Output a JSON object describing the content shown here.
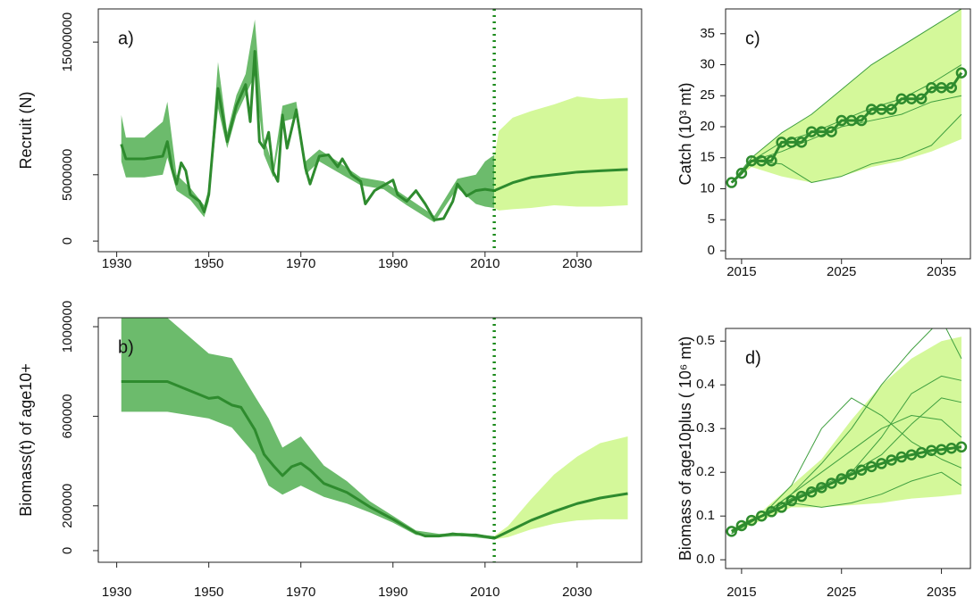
{
  "chart_data": [
    {
      "type": "line",
      "title": "a)",
      "ylabel": "Recruit (N)",
      "xlim": [
        1926,
        2044
      ],
      "ylim": [
        -800000,
        17500000
      ],
      "xticks": [
        1930,
        1950,
        1970,
        1990,
        2010,
        2030
      ],
      "yticks": [
        0,
        5000000,
        15000000
      ],
      "ytick_labels_vertical": true,
      "vline": 2012,
      "bands": [
        {
          "color": "#6cbb6c",
          "x": [
            1931,
            1932,
            1936,
            1940,
            1941,
            1943,
            1946,
            1949,
            1950,
            1952,
            1954,
            1956,
            1958,
            1960,
            1962,
            1964,
            1966,
            1969,
            1971,
            1974,
            1978,
            1983,
            1988,
            1993,
            1999,
            2004,
            2008,
            2010,
            2012
          ],
          "lower": [
            6000000,
            4800000,
            4800000,
            5000000,
            6300000,
            3800000,
            3100000,
            1800000,
            3000000,
            10000000,
            7000000,
            9500000,
            11000000,
            12500000,
            6500000,
            4800000,
            9000000,
            9300000,
            5000000,
            6000000,
            5200000,
            4200000,
            3900000,
            2700000,
            1400000,
            4000000,
            2800000,
            2600000,
            2500000
          ],
          "upper": [
            9500000,
            7800000,
            7800000,
            9000000,
            10500000,
            5000000,
            4000000,
            2700000,
            4000000,
            13500000,
            8200000,
            11000000,
            12600000,
            16700000,
            7800000,
            5600000,
            10200000,
            10500000,
            6000000,
            6900000,
            6000000,
            4800000,
            4500000,
            3300000,
            1900000,
            4700000,
            5000000,
            6000000,
            6500000
          ]
        },
        {
          "color": "#d4f89a",
          "x": [
            2012,
            2013,
            2016,
            2020,
            2025,
            2030,
            2035,
            2041
          ],
          "lower": [
            2500000,
            2300000,
            2400000,
            2500000,
            2700000,
            2600000,
            2600000,
            2700000
          ],
          "upper": [
            6300000,
            8300000,
            9300000,
            9800000,
            10300000,
            10900000,
            10700000,
            10800000
          ]
        }
      ],
      "series": [
        {
          "color": "#2e8b2e",
          "width": 3,
          "x": [
            1931,
            1932,
            1936,
            1940,
            1941,
            1942,
            1943,
            1944,
            1945,
            1946,
            1948,
            1949,
            1950,
            1952,
            1954,
            1956,
            1958,
            1959,
            1960,
            1961,
            1962,
            1963,
            1964,
            1965,
            1966,
            1967,
            1969,
            1971,
            1972,
            1974,
            1976,
            1978,
            1979,
            1981,
            1983,
            1984,
            1986,
            1988,
            1990,
            1991,
            1993,
            1995,
            1997,
            1999,
            2001,
            2003,
            2004,
            2006,
            2008,
            2010,
            2012,
            2016,
            2020,
            2025,
            2030,
            2035,
            2041
          ],
          "values": [
            7300000,
            6200000,
            6200000,
            6400000,
            7500000,
            5500000,
            4300000,
            5900000,
            5300000,
            3500000,
            3000000,
            2200000,
            3500000,
            11500000,
            7500000,
            10200000,
            11800000,
            9000000,
            14300000,
            7500000,
            7000000,
            8200000,
            5200000,
            4500000,
            9500000,
            7000000,
            9900000,
            5500000,
            4300000,
            6400000,
            6500000,
            5600000,
            6200000,
            5000000,
            4500000,
            2800000,
            3800000,
            4200000,
            4600000,
            3500000,
            3000000,
            3800000,
            2800000,
            1600000,
            1700000,
            3000000,
            4300000,
            3400000,
            3800000,
            3900000,
            3800000,
            4400000,
            4800000,
            5000000,
            5200000,
            5300000,
            5400000
          ]
        }
      ]
    },
    {
      "type": "line",
      "title": "b)",
      "ylabel": "Biomass(t) of age10+",
      "xlim": [
        1926,
        2044
      ],
      "ylim": [
        -52000,
        1040000
      ],
      "xticks": [
        1930,
        1950,
        1970,
        1990,
        2010,
        2030
      ],
      "yticks": [
        0,
        200000,
        600000,
        1000000
      ],
      "ytick_labels_vertical": true,
      "vline": 2012,
      "bands": [
        {
          "color": "#6cbb6c",
          "x": [
            1931,
            1941,
            1950,
            1955,
            1960,
            1963,
            1966,
            1970,
            1975,
            1980,
            1985,
            1990,
            1995,
            2000,
            2005,
            2012
          ],
          "lower": [
            620000,
            620000,
            590000,
            550000,
            430000,
            290000,
            250000,
            290000,
            240000,
            210000,
            170000,
            125000,
            70000,
            60000,
            65000,
            50000
          ],
          "upper": [
            1040000,
            1040000,
            880000,
            860000,
            690000,
            590000,
            460000,
            510000,
            380000,
            310000,
            220000,
            155000,
            90000,
            75000,
            80000,
            65000
          ]
        },
        {
          "color": "#d4f89a",
          "x": [
            2012,
            2015,
            2020,
            2025,
            2030,
            2035,
            2041
          ],
          "lower": [
            50000,
            60000,
            95000,
            120000,
            135000,
            140000,
            140000
          ],
          "upper": [
            65000,
            110000,
            230000,
            340000,
            420000,
            480000,
            510000
          ]
        }
      ],
      "series": [
        {
          "color": "#2e8b2e",
          "width": 3,
          "x": [
            1931,
            1941,
            1950,
            1952,
            1955,
            1957,
            1960,
            1962,
            1964,
            1966,
            1968,
            1970,
            1972,
            1975,
            1980,
            1985,
            1990,
            1995,
            1997,
            2000,
            2003,
            2005,
            2008,
            2012,
            2015,
            2020,
            2025,
            2030,
            2035,
            2041
          ],
          "values": [
            755000,
            755000,
            680000,
            685000,
            650000,
            640000,
            540000,
            430000,
            380000,
            335000,
            375000,
            390000,
            360000,
            300000,
            260000,
            195000,
            140000,
            80000,
            65000,
            65000,
            75000,
            70000,
            70000,
            55000,
            85000,
            135000,
            175000,
            210000,
            235000,
            255000
          ]
        }
      ]
    },
    {
      "type": "line",
      "title": "c)",
      "ylabel": "Catch (10³ mt)",
      "xlim": [
        2013.4,
        2037.9
      ],
      "ylim": [
        -1.3,
        39
      ],
      "xticks": [
        2015,
        2025,
        2035
      ],
      "yticks": [
        0,
        5,
        10,
        15,
        20,
        25,
        30,
        35
      ],
      "ytick_labels_vertical": false,
      "bands": [
        {
          "color": "#d4f89a",
          "x": [
            2014,
            2016,
            2019,
            2022,
            2025,
            2028,
            2031,
            2034,
            2037
          ],
          "lower": [
            11,
            13.5,
            12,
            11,
            12,
            13.5,
            14.5,
            16,
            18
          ],
          "upper": [
            11,
            15,
            19,
            22,
            26,
            30,
            33,
            36,
            39
          ]
        }
      ],
      "series": [
        {
          "color": "#3f9f3f",
          "width": 1,
          "x": [
            2014,
            2016,
            2019,
            2022,
            2025,
            2028,
            2031,
            2034,
            2037
          ],
          "values": [
            11,
            14.5,
            14,
            11,
            12,
            14,
            15,
            17,
            22
          ]
        },
        {
          "color": "#3f9f3f",
          "width": 1,
          "x": [
            2014,
            2016,
            2019,
            2022,
            2025,
            2028,
            2031,
            2034,
            2037
          ],
          "values": [
            11,
            15,
            19,
            22,
            26,
            30,
            33,
            36,
            39
          ]
        },
        {
          "color": "#3f9f3f",
          "width": 1,
          "x": [
            2014,
            2016,
            2019,
            2022,
            2025,
            2028,
            2031,
            2034,
            2037
          ],
          "values": [
            11,
            14.5,
            17.5,
            19,
            21,
            23,
            24.5,
            27,
            30
          ]
        },
        {
          "color": "#3f9f3f",
          "width": 1,
          "x": [
            2014,
            2016,
            2019,
            2022,
            2025,
            2028,
            2031,
            2034,
            2037
          ],
          "values": [
            11,
            14.5,
            16,
            18,
            20,
            21,
            22,
            24,
            25
          ]
        },
        {
          "color": "#2e8b2e",
          "width": 3,
          "markers": true,
          "x": [
            2014,
            2015,
            2016,
            2017,
            2018,
            2019,
            2020,
            2021,
            2022,
            2023,
            2024,
            2025,
            2026,
            2027,
            2028,
            2029,
            2030,
            2031,
            2032,
            2033,
            2034,
            2035,
            2036,
            2037
          ],
          "values": [
            11,
            12.5,
            14.5,
            14.5,
            14.5,
            17.5,
            17.5,
            17.5,
            19.2,
            19.2,
            19.2,
            21,
            21,
            21,
            22.8,
            22.8,
            22.8,
            24.5,
            24.5,
            24.5,
            26.3,
            26.3,
            26.3,
            28.7
          ]
        }
      ]
    },
    {
      "type": "line",
      "title": "d)",
      "ylabel": "Biomass of age10plus ( 10⁶ mt)",
      "xlim": [
        2013.4,
        2037.9
      ],
      "ylim": [
        -0.02,
        0.529
      ],
      "xticks": [
        2015,
        2025,
        2035
      ],
      "yticks": [
        {
          "value": 0,
          "label": "0.0"
        },
        0.1,
        0.2,
        0.3,
        0.4,
        0.5
      ],
      "ytick_labels_vertical": false,
      "bands": [
        {
          "color": "#d4f89a",
          "x": [
            2014,
            2017,
            2020,
            2023,
            2026,
            2029,
            2032,
            2035,
            2037
          ],
          "lower": [
            0.06,
            0.09,
            0.12,
            0.12,
            0.125,
            0.13,
            0.14,
            0.145,
            0.15
          ],
          "upper": [
            0.07,
            0.11,
            0.17,
            0.23,
            0.32,
            0.4,
            0.46,
            0.5,
            0.51
          ]
        }
      ],
      "series": [
        {
          "color": "#3f9f3f",
          "width": 1,
          "x": [
            2014,
            2017,
            2020,
            2023,
            2026,
            2029,
            2032,
            2035,
            2037
          ],
          "values": [
            0.06,
            0.1,
            0.17,
            0.3,
            0.37,
            0.33,
            0.27,
            0.23,
            0.21
          ]
        },
        {
          "color": "#3f9f3f",
          "width": 1,
          "x": [
            2014,
            2017,
            2020,
            2023,
            2026,
            2029,
            2032,
            2035,
            2037
          ],
          "values": [
            0.06,
            0.1,
            0.15,
            0.22,
            0.3,
            0.4,
            0.48,
            0.55,
            0.46
          ]
        },
        {
          "color": "#3f9f3f",
          "width": 1,
          "x": [
            2014,
            2017,
            2020,
            2023,
            2026,
            2029,
            2032,
            2035,
            2037
          ],
          "values": [
            0.06,
            0.1,
            0.14,
            0.16,
            0.2,
            0.28,
            0.38,
            0.42,
            0.41
          ]
        },
        {
          "color": "#3f9f3f",
          "width": 1,
          "x": [
            2014,
            2017,
            2020,
            2023,
            2026,
            2029,
            2032,
            2035,
            2037
          ],
          "values": [
            0.06,
            0.1,
            0.13,
            0.12,
            0.13,
            0.15,
            0.18,
            0.2,
            0.17
          ]
        },
        {
          "color": "#3f9f3f",
          "width": 1,
          "x": [
            2014,
            2017,
            2020,
            2023,
            2026,
            2029,
            2032,
            2035,
            2037
          ],
          "values": [
            0.06,
            0.1,
            0.15,
            0.2,
            0.25,
            0.3,
            0.33,
            0.32,
            0.28
          ]
        },
        {
          "color": "#3f9f3f",
          "width": 1,
          "x": [
            2014,
            2017,
            2020,
            2023,
            2026,
            2029,
            2032,
            2035,
            2037
          ],
          "values": [
            0.06,
            0.1,
            0.14,
            0.17,
            0.2,
            0.24,
            0.31,
            0.37,
            0.36
          ]
        },
        {
          "color": "#2e8b2e",
          "width": 3,
          "markers": true,
          "x": [
            2014,
            2015,
            2016,
            2017,
            2018,
            2019,
            2020,
            2021,
            2022,
            2023,
            2024,
            2025,
            2026,
            2027,
            2028,
            2029,
            2030,
            2031,
            2032,
            2033,
            2034,
            2035,
            2036,
            2037
          ],
          "values": [
            0.065,
            0.078,
            0.09,
            0.1,
            0.11,
            0.12,
            0.135,
            0.145,
            0.155,
            0.165,
            0.175,
            0.185,
            0.195,
            0.205,
            0.213,
            0.22,
            0.228,
            0.235,
            0.24,
            0.245,
            0.25,
            0.252,
            0.255,
            0.258
          ]
        }
      ]
    }
  ]
}
